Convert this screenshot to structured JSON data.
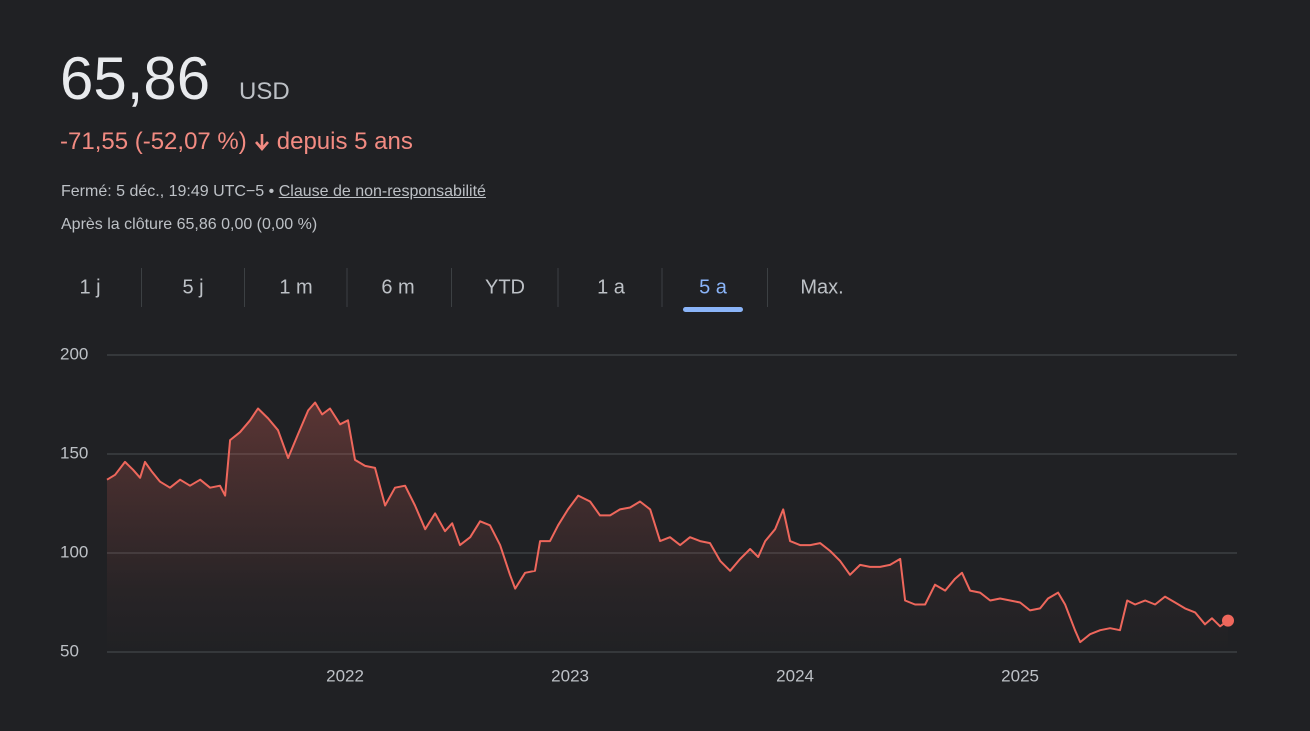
{
  "header": {
    "price": "65,86",
    "currency": "USD",
    "change": "-71,55 (-52,07 %)",
    "period": "depuis 5 ans",
    "closed": "Fermé: 5 déc., 19:49 UTC−5 •",
    "disclaimer": "Clause de non-responsabilité",
    "after_hours": "Après la clôture 65,86 0,00 (0,00 %)"
  },
  "tabs": [
    "1 j",
    "5 j",
    "1 m",
    "6 m",
    "YTD",
    "1 a",
    "5 a",
    "Max."
  ],
  "active_tab": 6,
  "chart_data": {
    "type": "line",
    "color": "#ee675c",
    "grid": true,
    "xlim": [
      2020.942,
      2025.964
    ],
    "xticks": [
      2022,
      2023,
      2024,
      2025
    ],
    "ylim": [
      50,
      200
    ],
    "yticks": [
      50,
      100,
      150,
      200
    ],
    "x": [
      2020.942,
      2020.978,
      2021.022,
      2021.058,
      2021.089,
      2021.111,
      2021.142,
      2021.178,
      2021.222,
      2021.267,
      2021.311,
      2021.356,
      2021.4,
      2021.444,
      2021.467,
      2021.489,
      2021.533,
      2021.578,
      2021.613,
      2021.658,
      2021.702,
      2021.747,
      2021.791,
      2021.836,
      2021.867,
      2021.898,
      2021.933,
      2021.978,
      2022.013,
      2022.044,
      2022.089,
      2022.133,
      2022.178,
      2022.222,
      2022.267,
      2022.311,
      2022.356,
      2022.4,
      2022.444,
      2022.476,
      2022.511,
      2022.556,
      2022.6,
      2022.644,
      2022.689,
      2022.733,
      2022.756,
      2022.8,
      2022.844,
      2022.867,
      2022.911,
      2022.947,
      2022.991,
      2023.036,
      2023.089,
      2023.133,
      2023.178,
      2023.222,
      2023.267,
      2023.311,
      2023.356,
      2023.4,
      2023.444,
      2023.489,
      2023.533,
      2023.578,
      2023.622,
      2023.667,
      2023.711,
      2023.756,
      2023.8,
      2023.836,
      2023.867,
      2023.911,
      2023.947,
      2023.978,
      2024.022,
      2024.067,
      2024.111,
      2024.156,
      2024.2,
      2024.244,
      2024.289,
      2024.333,
      2024.378,
      2024.422,
      2024.467,
      2024.489,
      2024.533,
      2024.578,
      2024.622,
      2024.667,
      2024.711,
      2024.742,
      2024.778,
      2024.822,
      2024.867,
      2024.911,
      2024.956,
      2025.0,
      2025.044,
      2025.089,
      2025.124,
      2025.169,
      2025.2,
      2025.244,
      2025.267,
      2025.311,
      2025.356,
      2025.4,
      2025.444,
      2025.476,
      2025.511,
      2025.556,
      2025.6,
      2025.644,
      2025.689,
      2025.733,
      2025.778,
      2025.822,
      2025.853,
      2025.889,
      2025.924
    ],
    "values": [
      137,
      139.5,
      146,
      142,
      138,
      146,
      141,
      136,
      133,
      137,
      134,
      137,
      133,
      134,
      129,
      157,
      161,
      167,
      173,
      168,
      162,
      148,
      160,
      172,
      176,
      170,
      173,
      165,
      167,
      147,
      144,
      143,
      124,
      133,
      134,
      124,
      112,
      120,
      111,
      115,
      104,
      108,
      116,
      114,
      104,
      89,
      82,
      90,
      91,
      106,
      106,
      114,
      122,
      129,
      126,
      119,
      119,
      122,
      123,
      126,
      122,
      106,
      108,
      104,
      108,
      106,
      105,
      96,
      91,
      97,
      102,
      98,
      106,
      112,
      122,
      106,
      104,
      104,
      105,
      101,
      96,
      89,
      94,
      93,
      93,
      94,
      97,
      76,
      74,
      74,
      84,
      81,
      87,
      90,
      81,
      80,
      76,
      77,
      76,
      75,
      71,
      72,
      77,
      80,
      74,
      61,
      55,
      59,
      61,
      62,
      61,
      76,
      74,
      76,
      74,
      78,
      75,
      72,
      70,
      64,
      67,
      63,
      65.86
    ]
  }
}
